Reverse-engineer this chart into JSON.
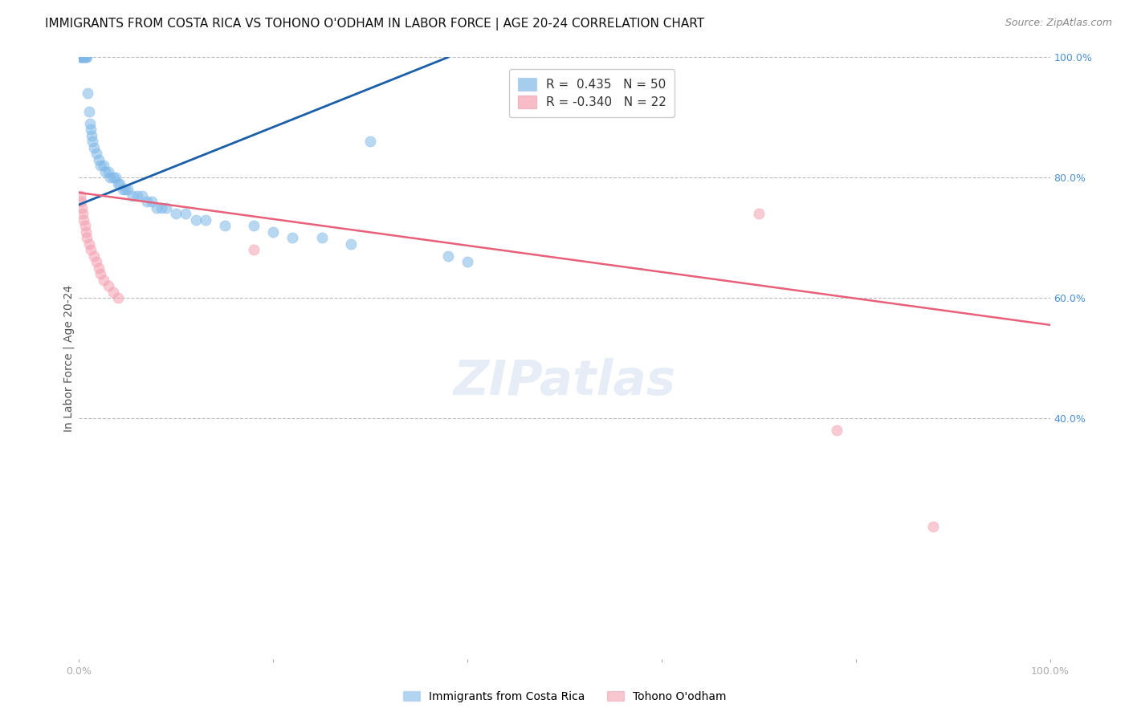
{
  "title": "IMMIGRANTS FROM COSTA RICA VS TOHONO O'ODHAM IN LABOR FORCE | AGE 20-24 CORRELATION CHART",
  "source_text": "Source: ZipAtlas.com",
  "ylabel": "In Labor Force | Age 20-24",
  "xlim": [
    0.0,
    1.0
  ],
  "ylim": [
    0.0,
    1.0
  ],
  "watermark": "ZIPatlas",
  "blue_scatter_x": [
    0.001,
    0.002,
    0.003,
    0.004,
    0.005,
    0.006,
    0.007,
    0.008,
    0.009,
    0.01,
    0.011,
    0.012,
    0.013,
    0.014,
    0.015,
    0.018,
    0.02,
    0.022,
    0.025,
    0.027,
    0.03,
    0.032,
    0.035,
    0.038,
    0.04,
    0.042,
    0.045,
    0.048,
    0.05,
    0.055,
    0.06,
    0.065,
    0.07,
    0.075,
    0.08,
    0.085,
    0.09,
    0.1,
    0.11,
    0.12,
    0.13,
    0.15,
    0.18,
    0.2,
    0.22,
    0.25,
    0.28,
    0.3,
    0.38,
    0.4
  ],
  "blue_scatter_y": [
    1.0,
    1.0,
    1.0,
    1.0,
    1.0,
    1.0,
    1.0,
    1.0,
    0.94,
    0.91,
    0.89,
    0.88,
    0.87,
    0.86,
    0.85,
    0.84,
    0.83,
    0.82,
    0.82,
    0.81,
    0.81,
    0.8,
    0.8,
    0.8,
    0.79,
    0.79,
    0.78,
    0.78,
    0.78,
    0.77,
    0.77,
    0.77,
    0.76,
    0.76,
    0.75,
    0.75,
    0.75,
    0.74,
    0.74,
    0.73,
    0.73,
    0.72,
    0.72,
    0.71,
    0.7,
    0.7,
    0.69,
    0.86,
    0.67,
    0.66
  ],
  "pink_scatter_x": [
    0.001,
    0.002,
    0.003,
    0.004,
    0.005,
    0.006,
    0.007,
    0.008,
    0.01,
    0.012,
    0.015,
    0.018,
    0.02,
    0.022,
    0.025,
    0.03,
    0.035,
    0.04,
    0.18,
    0.7,
    0.78,
    0.88
  ],
  "pink_scatter_y": [
    0.77,
    0.76,
    0.75,
    0.74,
    0.73,
    0.72,
    0.71,
    0.7,
    0.69,
    0.68,
    0.67,
    0.66,
    0.65,
    0.64,
    0.63,
    0.62,
    0.61,
    0.6,
    0.68,
    0.74,
    0.38,
    0.22
  ],
  "blue_line_x": [
    0.0,
    0.38
  ],
  "blue_line_y": [
    0.755,
    1.0
  ],
  "pink_line_x": [
    0.0,
    1.0
  ],
  "pink_line_y": [
    0.775,
    0.555
  ],
  "blue_color": "#7eb8e8",
  "pink_color": "#f4a0b0",
  "blue_line_color": "#1a5fa8",
  "pink_line_color": "#e8607a",
  "scatter_alpha": 0.55,
  "scatter_size": 90,
  "grid_color": "#bbbbbb",
  "background_color": "#ffffff",
  "title_fontsize": 11,
  "source_fontsize": 9,
  "ylabel_fontsize": 10,
  "tick_fontsize": 9,
  "legend_fontsize": 11,
  "right_yticks": [
    0.4,
    0.6,
    0.8,
    1.0
  ],
  "right_yticklabels": [
    "40.0%",
    "60.0%",
    "80.0%",
    "100.0%"
  ]
}
